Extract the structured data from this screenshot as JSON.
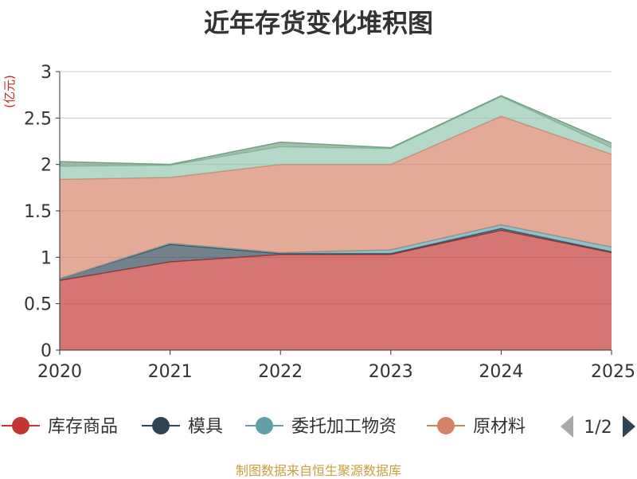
{
  "chart_data": {
    "type": "area",
    "stacked": true,
    "title": "近年存货变化堆积图",
    "ylabel": "(亿元)",
    "x": [
      "2020",
      "2021",
      "2022",
      "2023",
      "2024",
      "2025"
    ],
    "ylim": [
      0,
      3
    ],
    "yticks": [
      "0",
      "0.5",
      "1",
      "1.5",
      "2",
      "2.5",
      "3"
    ],
    "grid": true,
    "series": [
      {
        "name": "库存商品",
        "color": "#c23531",
        "values": [
          0.75,
          0.95,
          1.03,
          1.03,
          1.29,
          1.05
        ]
      },
      {
        "name": "模具",
        "color": "#2f4554",
        "values": [
          0.02,
          0.19,
          0.01,
          0.01,
          0.02,
          0.01
        ]
      },
      {
        "name": "委托加工物资",
        "color": "#61a0a8",
        "values": [
          0.0,
          0.01,
          0.01,
          0.04,
          0.04,
          0.05
        ]
      },
      {
        "name": "原材料",
        "color": "#d48265",
        "values": [
          1.07,
          0.71,
          0.95,
          0.92,
          1.17,
          1.0
        ]
      },
      {
        "name": "",
        "color": "#91c7ae",
        "values": [
          0.14,
          0.13,
          0.19,
          0.17,
          0.21,
          0.07
        ]
      },
      {
        "name": "",
        "color": "#749f83",
        "values": [
          0.05,
          0.01,
          0.05,
          0.01,
          0.01,
          0.05
        ]
      }
    ],
    "legend": {
      "placement": "bottom",
      "page": "1/2"
    }
  },
  "source_note": "制图数据来自恒生聚源数据库"
}
